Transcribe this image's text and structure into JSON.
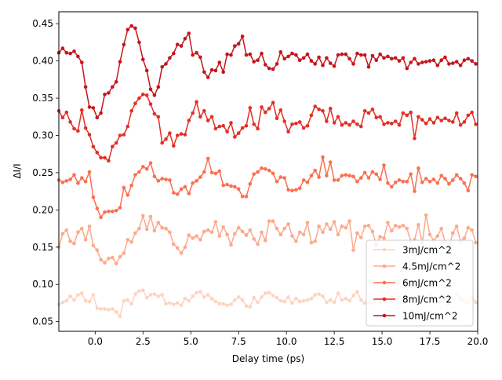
{
  "chart_data": {
    "type": "line",
    "title": "",
    "xlabel": "Delay time (ps)",
    "ylabel": "ΔI/I",
    "xlim": [
      -1.9,
      20.0
    ],
    "ylim": [
      0.037,
      0.466
    ],
    "xticks": [
      0.0,
      2.5,
      5.0,
      7.5,
      10.0,
      12.5,
      15.0,
      17.5,
      20.0
    ],
    "xtick_labels": [
      "0.0",
      "2.5",
      "5.0",
      "7.5",
      "10.0",
      "12.5",
      "15.0",
      "17.5",
      "20.0"
    ],
    "yticks": [
      0.05,
      0.1,
      0.15,
      0.2,
      0.25,
      0.3,
      0.35,
      0.4,
      0.45
    ],
    "ytick_labels": [
      "0.05",
      "0.10",
      "0.15",
      "0.20",
      "0.25",
      "0.30",
      "0.35",
      "0.40",
      "0.45"
    ],
    "grid": false,
    "legend_position": "lower-right",
    "x": [
      -1.9,
      -1.7,
      -1.5,
      -1.3,
      -1.1,
      -0.9,
      -0.7,
      -0.5,
      -0.3,
      -0.1,
      0.1,
      0.3,
      0.5,
      0.7,
      0.9,
      1.1,
      1.3,
      1.5,
      1.7,
      1.9,
      2.1,
      2.3,
      2.5,
      2.7,
      2.9,
      3.1,
      3.3,
      3.5,
      3.7,
      3.9,
      4.1,
      4.3,
      4.5,
      4.7,
      4.9,
      5.1,
      5.3,
      5.5,
      5.7,
      5.9,
      6.1,
      6.3,
      6.5,
      6.7,
      6.9,
      7.1,
      7.3,
      7.5,
      7.7,
      7.9,
      8.1,
      8.3,
      8.5,
      8.7,
      8.9,
      9.1,
      9.3,
      9.5,
      9.7,
      9.9,
      10.1,
      10.3,
      10.5,
      10.7,
      10.9,
      11.1,
      11.3,
      11.5,
      11.7,
      11.9,
      12.1,
      12.3,
      12.5,
      12.7,
      12.9,
      13.1,
      13.3,
      13.5,
      13.7,
      13.9,
      14.1,
      14.3,
      14.5,
      14.7,
      14.9,
      15.1,
      15.3,
      15.5,
      15.7,
      15.9,
      16.1,
      16.3,
      16.5,
      16.7,
      16.9,
      17.1,
      17.3,
      17.5,
      17.7,
      17.9,
      18.1,
      18.3,
      18.5,
      18.7,
      18.9,
      19.1,
      19.3,
      19.5,
      19.7,
      19.9
    ],
    "series": [
      {
        "name": "3mJ/cm^2",
        "color": "#fcd4c2",
        "values": [
          0.073,
          0.076,
          0.078,
          0.084,
          0.079,
          0.086,
          0.088,
          0.078,
          0.077,
          0.086,
          0.068,
          0.067,
          0.067,
          0.066,
          0.067,
          0.063,
          0.057,
          0.078,
          0.079,
          0.074,
          0.087,
          0.091,
          0.092,
          0.082,
          0.086,
          0.087,
          0.084,
          0.086,
          0.074,
          0.075,
          0.073,
          0.075,
          0.072,
          0.081,
          0.078,
          0.084,
          0.089,
          0.09,
          0.083,
          0.086,
          0.081,
          0.077,
          0.074,
          0.074,
          0.072,
          0.073,
          0.079,
          0.083,
          0.079,
          0.071,
          0.07,
          0.082,
          0.076,
          0.083,
          0.088,
          0.089,
          0.085,
          0.082,
          0.078,
          0.077,
          0.083,
          0.075,
          0.081,
          0.077,
          0.078,
          0.079,
          0.081,
          0.086,
          0.087,
          0.084,
          0.076,
          0.079,
          0.076,
          0.088,
          0.079,
          0.081,
          0.078,
          0.085,
          0.09,
          0.079,
          0.075,
          0.076,
          0.074,
          0.081,
          0.076,
          0.078,
          0.089,
          0.083,
          0.08,
          0.075,
          0.076,
          0.078,
          0.083,
          0.075,
          0.078,
          0.083,
          0.079,
          0.085,
          0.08,
          0.076,
          0.079,
          0.081,
          0.074,
          0.08,
          0.087,
          0.081,
          0.078,
          0.076,
          0.083,
          0.076
        ]
      },
      {
        "name": "4.5mJ/cm^2",
        "color": "#fcaa8d",
        "values": [
          0.15,
          0.168,
          0.173,
          0.158,
          0.155,
          0.17,
          0.175,
          0.16,
          0.178,
          0.152,
          0.146,
          0.133,
          0.129,
          0.135,
          0.136,
          0.128,
          0.137,
          0.142,
          0.16,
          0.157,
          0.169,
          0.175,
          0.192,
          0.174,
          0.191,
          0.172,
          0.183,
          0.176,
          0.175,
          0.17,
          0.154,
          0.149,
          0.142,
          0.15,
          0.166,
          0.162,
          0.165,
          0.16,
          0.171,
          0.173,
          0.17,
          0.184,
          0.165,
          0.177,
          0.167,
          0.153,
          0.168,
          0.176,
          0.171,
          0.166,
          0.173,
          0.161,
          0.154,
          0.17,
          0.159,
          0.185,
          0.185,
          0.175,
          0.167,
          0.175,
          0.181,
          0.165,
          0.158,
          0.17,
          0.167,
          0.183,
          0.156,
          0.158,
          0.178,
          0.17,
          0.181,
          0.174,
          0.184,
          0.167,
          0.178,
          0.176,
          0.185,
          0.146,
          0.169,
          0.163,
          0.178,
          0.179,
          0.171,
          0.153,
          0.164,
          0.162,
          0.183,
          0.172,
          0.179,
          0.177,
          0.179,
          0.175,
          0.158,
          0.16,
          0.18,
          0.156,
          0.193,
          0.167,
          0.159,
          0.165,
          0.175,
          0.157,
          0.15,
          0.169,
          0.178,
          0.158,
          0.162,
          0.176,
          0.173,
          0.156
        ]
      },
      {
        "name": "6mJ/cm^2",
        "color": "#fb7050",
        "values": [
          0.24,
          0.237,
          0.239,
          0.241,
          0.247,
          0.236,
          0.243,
          0.238,
          0.251,
          0.217,
          0.202,
          0.19,
          0.197,
          0.198,
          0.198,
          0.199,
          0.203,
          0.23,
          0.22,
          0.233,
          0.247,
          0.251,
          0.258,
          0.255,
          0.263,
          0.245,
          0.239,
          0.242,
          0.241,
          0.24,
          0.223,
          0.221,
          0.228,
          0.231,
          0.222,
          0.236,
          0.239,
          0.244,
          0.251,
          0.269,
          0.25,
          0.249,
          0.252,
          0.233,
          0.234,
          0.232,
          0.231,
          0.228,
          0.218,
          0.218,
          0.235,
          0.248,
          0.251,
          0.256,
          0.255,
          0.253,
          0.249,
          0.238,
          0.244,
          0.243,
          0.227,
          0.226,
          0.227,
          0.229,
          0.24,
          0.237,
          0.246,
          0.253,
          0.244,
          0.271,
          0.246,
          0.264,
          0.24,
          0.24,
          0.246,
          0.247,
          0.246,
          0.245,
          0.238,
          0.243,
          0.25,
          0.243,
          0.251,
          0.248,
          0.241,
          0.26,
          0.236,
          0.231,
          0.237,
          0.24,
          0.238,
          0.238,
          0.248,
          0.225,
          0.256,
          0.237,
          0.242,
          0.238,
          0.241,
          0.236,
          0.246,
          0.242,
          0.235,
          0.24,
          0.247,
          0.242,
          0.236,
          0.226,
          0.247,
          0.245
        ]
      },
      {
        "name": "8mJ/cm^2",
        "color": "#e32f27",
        "values": [
          0.333,
          0.324,
          0.331,
          0.318,
          0.309,
          0.306,
          0.334,
          0.31,
          0.301,
          0.285,
          0.277,
          0.27,
          0.27,
          0.266,
          0.285,
          0.29,
          0.3,
          0.301,
          0.312,
          0.333,
          0.343,
          0.35,
          0.355,
          0.354,
          0.342,
          0.329,
          0.325,
          0.29,
          0.295,
          0.303,
          0.286,
          0.3,
          0.302,
          0.301,
          0.32,
          0.33,
          0.345,
          0.325,
          0.333,
          0.32,
          0.325,
          0.309,
          0.312,
          0.313,
          0.305,
          0.317,
          0.298,
          0.303,
          0.31,
          0.313,
          0.337,
          0.315,
          0.309,
          0.338,
          0.331,
          0.336,
          0.344,
          0.323,
          0.334,
          0.319,
          0.305,
          0.315,
          0.316,
          0.318,
          0.31,
          0.313,
          0.327,
          0.339,
          0.335,
          0.333,
          0.319,
          0.336,
          0.317,
          0.325,
          0.314,
          0.317,
          0.314,
          0.319,
          0.315,
          0.312,
          0.333,
          0.33,
          0.335,
          0.324,
          0.325,
          0.315,
          0.317,
          0.316,
          0.319,
          0.314,
          0.33,
          0.327,
          0.331,
          0.296,
          0.325,
          0.321,
          0.316,
          0.322,
          0.317,
          0.324,
          0.32,
          0.323,
          0.32,
          0.318,
          0.33,
          0.314,
          0.318,
          0.327,
          0.331,
          0.315
        ]
      },
      {
        "name": "10mJ/cm^2",
        "color": "#c4161c",
        "values": [
          0.411,
          0.417,
          0.411,
          0.41,
          0.413,
          0.406,
          0.398,
          0.365,
          0.338,
          0.337,
          0.324,
          0.33,
          0.355,
          0.357,
          0.365,
          0.372,
          0.399,
          0.422,
          0.442,
          0.447,
          0.444,
          0.425,
          0.402,
          0.387,
          0.362,
          0.354,
          0.365,
          0.392,
          0.396,
          0.404,
          0.41,
          0.422,
          0.42,
          0.43,
          0.437,
          0.408,
          0.411,
          0.405,
          0.385,
          0.378,
          0.388,
          0.387,
          0.398,
          0.385,
          0.409,
          0.408,
          0.42,
          0.423,
          0.433,
          0.408,
          0.409,
          0.399,
          0.401,
          0.41,
          0.395,
          0.39,
          0.389,
          0.396,
          0.412,
          0.403,
          0.406,
          0.41,
          0.408,
          0.401,
          0.404,
          0.409,
          0.4,
          0.396,
          0.405,
          0.394,
          0.404,
          0.397,
          0.393,
          0.408,
          0.409,
          0.409,
          0.403,
          0.396,
          0.41,
          0.408,
          0.408,
          0.392,
          0.407,
          0.401,
          0.409,
          0.404,
          0.406,
          0.403,
          0.404,
          0.4,
          0.404,
          0.39,
          0.398,
          0.403,
          0.396,
          0.398,
          0.399,
          0.4,
          0.401,
          0.394,
          0.401,
          0.405,
          0.396,
          0.397,
          0.399,
          0.394,
          0.401,
          0.403,
          0.4,
          0.396
        ]
      }
    ]
  }
}
